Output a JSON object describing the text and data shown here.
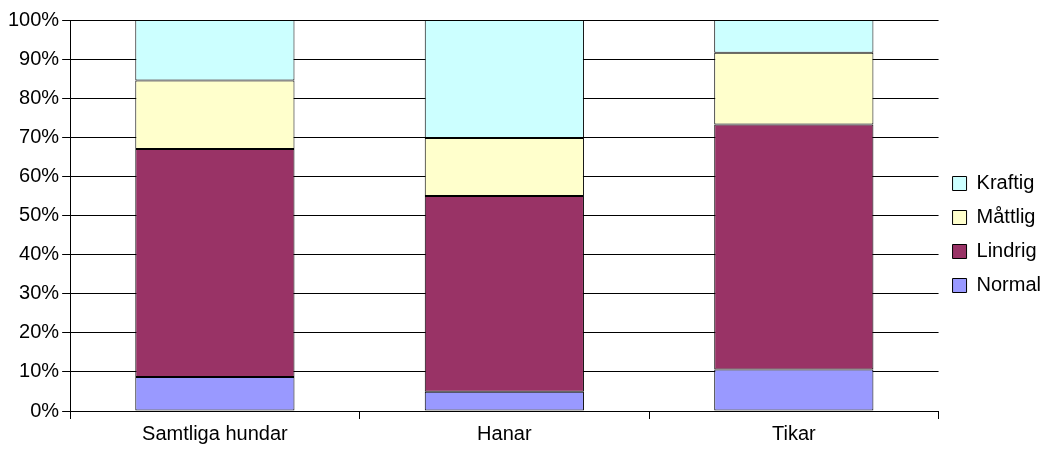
{
  "chart_data": {
    "type": "bar",
    "stacked": true,
    "categories": [
      "Samtliga hundar",
      "Hanar",
      "Tikar"
    ],
    "series": [
      {
        "name": "Normal",
        "color": "#9999ff",
        "values": [
          8.7,
          4.9,
          10.6
        ]
      },
      {
        "name": "Lindrig",
        "color": "#993366",
        "values": [
          58.3,
          50.1,
          62.7
        ]
      },
      {
        "name": "Måttlig",
        "color": "#ffffcc",
        "values": [
          17.5,
          14.8,
          18.3
        ]
      },
      {
        "name": "Kraftig",
        "color": "#ccffff",
        "values": [
          15.5,
          30.2,
          8.4
        ]
      }
    ],
    "ylim": [
      0,
      100
    ],
    "yticks": [
      {
        "value": 0,
        "label": "0%"
      },
      {
        "value": 10,
        "label": "10%"
      },
      {
        "value": 20,
        "label": "20%"
      },
      {
        "value": 30,
        "label": "30%"
      },
      {
        "value": 40,
        "label": "40%"
      },
      {
        "value": 50,
        "label": "50%"
      },
      {
        "value": 60,
        "label": "60%"
      },
      {
        "value": 70,
        "label": "70%"
      },
      {
        "value": 80,
        "label": "80%"
      },
      {
        "value": 90,
        "label": "90%"
      },
      {
        "value": 100,
        "label": "100%"
      }
    ],
    "grid": "y",
    "legend": "right"
  }
}
